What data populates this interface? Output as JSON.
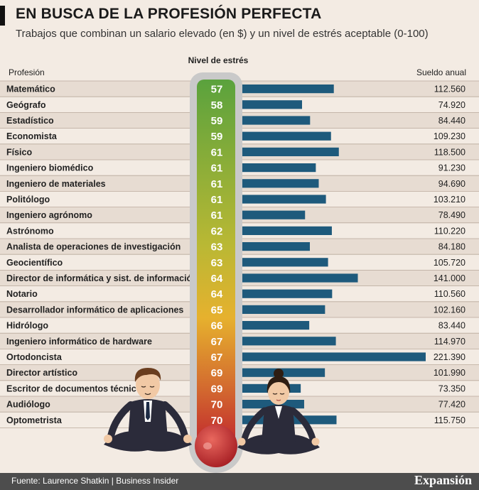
{
  "header": {
    "title": "EN BUSCA DE LA PROFESIÓN PERFECTA",
    "subtitle": "Trabajos que combinan un salario elevado (en $) y un nivel de estrés aceptable (0-100)"
  },
  "footer": {
    "source": "Fuente: Laurence Shatkin | Business Insider",
    "brand": "Expansión"
  },
  "colors": {
    "bar": "#1e5a7c",
    "row_alt": "#e7dcd2",
    "thermo_top": "#5aa23d",
    "thermo_mid": "#e6b12e",
    "thermo_bottom": "#c1272d"
  },
  "chart_data": {
    "type": "bar",
    "title": "EN BUSCA DE LA PROFESIÓN PERFECTA",
    "col_profession": "Profesión",
    "col_stress": "Nivel de estrés",
    "col_salary": "Sueldo anual",
    "categories": [
      "Matemático",
      "Geógrafo",
      "Estadístico",
      "Economista",
      "Físico",
      "Ingeniero biomédico",
      "Ingeniero de materiales",
      "Politólogo",
      "Ingeniero agrónomo",
      "Astrónomo",
      "Analista de operaciones de investigación",
      "Geocientífico",
      "Director de informática y sist. de información",
      "Notario",
      "Desarrollador informático de aplicaciones",
      "Hidrólogo",
      "Ingeniero informático de hardware",
      "Ortodoncista",
      "Director artístico",
      "Escritor de documentos técnicos",
      "Audiólogo",
      "Optometrista"
    ],
    "stress": [
      57,
      58,
      59,
      59,
      61,
      61,
      61,
      61,
      61,
      62,
      63,
      63,
      64,
      64,
      65,
      66,
      67,
      67,
      69,
      69,
      70,
      70
    ],
    "values": [
      112560,
      74920,
      84440,
      109230,
      118500,
      91230,
      94690,
      103210,
      78490,
      110220,
      84180,
      105720,
      141000,
      110560,
      102160,
      83440,
      114970,
      221390,
      101990,
      73350,
      77420,
      115750
    ],
    "value_labels": [
      "112.560",
      "74.920",
      "84.440",
      "109.230",
      "118.500",
      "91.230",
      "94.690",
      "103.210",
      "78.490",
      "110.220",
      "84.180",
      "105.720",
      "141.000",
      "110.560",
      "102.160",
      "83.440",
      "114.970",
      "221.390",
      "101.990",
      "73.350",
      "77.420",
      "115.750"
    ],
    "xlim": [
      0,
      221390
    ]
  }
}
